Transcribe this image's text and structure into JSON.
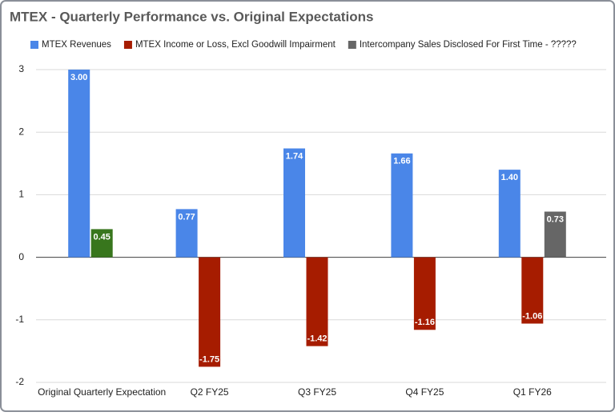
{
  "chart_data": {
    "type": "bar",
    "title": "MTEX - Quarterly Performance vs. Original Expectations",
    "categories": [
      "Original Quarterly Expectation",
      "Q2 FY25",
      "Q3 FY25",
      "Q4 FY25",
      "Q1 FY26"
    ],
    "series": [
      {
        "name": "MTEX Revenues",
        "color": "#4a86e8",
        "values": [
          3.0,
          0.77,
          1.74,
          1.66,
          1.4
        ],
        "value_labels": [
          "3.00",
          "0.77",
          "1.74",
          "1.66",
          "1.40"
        ]
      },
      {
        "name": "MTEX Income or Loss, Excl Goodwill Impairment",
        "color": "#a61c00",
        "point_colors": [
          "#38761d",
          "#a61c00",
          "#a61c00",
          "#a61c00",
          "#a61c00"
        ],
        "values": [
          0.45,
          -1.75,
          -1.42,
          -1.16,
          -1.06
        ],
        "value_labels": [
          "0.45",
          "-1.75",
          "-1.42",
          "-1.16",
          "-1.06"
        ]
      },
      {
        "name": "Intercompany Sales Disclosed For First Time - ?????",
        "color": "#666666",
        "values": [
          null,
          null,
          null,
          null,
          0.73
        ],
        "value_labels": [
          null,
          null,
          null,
          null,
          "0.73"
        ]
      }
    ],
    "ylim": [
      -2,
      3
    ],
    "yticks": [
      -2,
      -1,
      0,
      1,
      2,
      3
    ],
    "grid": true,
    "legend": "top"
  }
}
